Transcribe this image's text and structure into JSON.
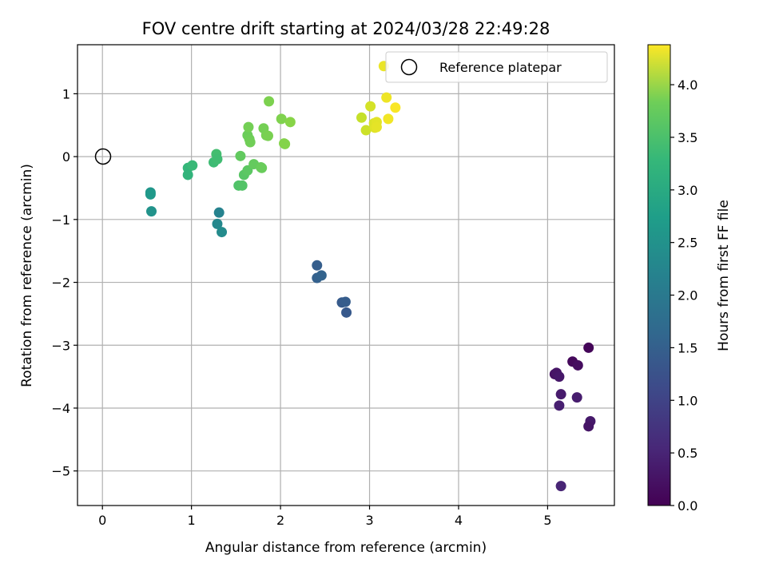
{
  "chart_data": {
    "type": "scatter",
    "title": "FOV centre drift starting at 2024/03/28 22:49:28",
    "xlabel": "Angular distance from reference (arcmin)",
    "ylabel": "Rotation from reference (arcmin)",
    "xlim": [
      -0.28,
      5.75
    ],
    "ylim": [
      -5.55,
      1.78
    ],
    "xticks": [
      0,
      1,
      2,
      3,
      4,
      5
    ],
    "yticks": [
      -5,
      -4,
      -3,
      -2,
      -1,
      0,
      1
    ],
    "grid": true,
    "legend": {
      "placement": "top-right",
      "entries": [
        {
          "label": "Reference platepar",
          "marker": "open-circle"
        }
      ]
    },
    "reference_point": {
      "x": 0,
      "y": 0
    },
    "colorbar": {
      "label": "Hours from first FF file",
      "colormap": "viridis",
      "range": [
        0.0,
        4.38
      ],
      "ticks": [
        0.0,
        0.5,
        1.0,
        1.5,
        2.0,
        2.5,
        3.0,
        3.5,
        4.0
      ],
      "tick_labels": [
        "0.0",
        "0.5",
        "1.0",
        "1.5",
        "2.0",
        "2.5",
        "3.0",
        "3.5",
        "4.0"
      ]
    },
    "points": [
      {
        "x": 5.46,
        "y": -3.04,
        "t": 0.05
      },
      {
        "x": 5.28,
        "y": -3.26,
        "t": 0.1
      },
      {
        "x": 5.34,
        "y": -3.32,
        "t": 0.15
      },
      {
        "x": 5.08,
        "y": -3.46,
        "t": 0.2
      },
      {
        "x": 5.1,
        "y": -3.44,
        "t": 0.25
      },
      {
        "x": 5.13,
        "y": -3.5,
        "t": 0.28
      },
      {
        "x": 5.15,
        "y": -3.78,
        "t": 0.33
      },
      {
        "x": 5.33,
        "y": -3.83,
        "t": 0.35
      },
      {
        "x": 5.13,
        "y": -3.96,
        "t": 0.38
      },
      {
        "x": 5.48,
        "y": -4.21,
        "t": 0.3
      },
      {
        "x": 5.46,
        "y": -4.29,
        "t": 0.25
      },
      {
        "x": 5.15,
        "y": -5.24,
        "t": 0.45
      },
      {
        "x": 2.41,
        "y": -1.73,
        "t": 1.3
      },
      {
        "x": 2.41,
        "y": -1.93,
        "t": 1.35
      },
      {
        "x": 2.46,
        "y": -1.89,
        "t": 1.38
      },
      {
        "x": 2.69,
        "y": -2.32,
        "t": 1.25
      },
      {
        "x": 2.73,
        "y": -2.31,
        "t": 1.28
      },
      {
        "x": 2.74,
        "y": -2.48,
        "t": 1.22
      },
      {
        "x": 1.31,
        "y": -0.89,
        "t": 1.95
      },
      {
        "x": 1.29,
        "y": -1.07,
        "t": 2.05
      },
      {
        "x": 1.34,
        "y": -1.2,
        "t": 2.1
      },
      {
        "x": 0.54,
        "y": -0.57,
        "t": 2.3
      },
      {
        "x": 0.54,
        "y": -0.6,
        "t": 2.35
      },
      {
        "x": 0.55,
        "y": -0.87,
        "t": 2.25
      },
      {
        "x": 0.96,
        "y": -0.18,
        "t": 2.9
      },
      {
        "x": 1.01,
        "y": -0.14,
        "t": 2.95
      },
      {
        "x": 0.96,
        "y": -0.29,
        "t": 2.85
      },
      {
        "x": 1.25,
        "y": -0.09,
        "t": 3.0
      },
      {
        "x": 1.28,
        "y": 0.04,
        "t": 3.05
      },
      {
        "x": 1.29,
        "y": -0.04,
        "t": 3.02
      },
      {
        "x": 1.53,
        "y": -0.46,
        "t": 3.15
      },
      {
        "x": 1.57,
        "y": -0.46,
        "t": 3.18
      },
      {
        "x": 1.59,
        "y": -0.29,
        "t": 3.22
      },
      {
        "x": 1.63,
        "y": -0.22,
        "t": 3.25
      },
      {
        "x": 1.55,
        "y": 0.01,
        "t": 3.3
      },
      {
        "x": 1.7,
        "y": -0.12,
        "t": 3.32
      },
      {
        "x": 1.78,
        "y": -0.17,
        "t": 3.35
      },
      {
        "x": 1.79,
        "y": -0.18,
        "t": 3.36
      },
      {
        "x": 1.63,
        "y": 0.34,
        "t": 3.38
      },
      {
        "x": 1.65,
        "y": 0.28,
        "t": 3.4
      },
      {
        "x": 1.66,
        "y": 0.23,
        "t": 3.42
      },
      {
        "x": 1.64,
        "y": 0.47,
        "t": 3.44
      },
      {
        "x": 1.81,
        "y": 0.45,
        "t": 3.45
      },
      {
        "x": 1.84,
        "y": 0.34,
        "t": 3.46
      },
      {
        "x": 1.86,
        "y": 0.33,
        "t": 3.48
      },
      {
        "x": 1.87,
        "y": 0.88,
        "t": 3.5
      },
      {
        "x": 2.01,
        "y": 0.6,
        "t": 3.52
      },
      {
        "x": 2.04,
        "y": 0.21,
        "t": 3.55
      },
      {
        "x": 2.05,
        "y": 0.2,
        "t": 3.56
      },
      {
        "x": 2.11,
        "y": 0.55,
        "t": 3.58
      },
      {
        "x": 2.91,
        "y": 0.62,
        "t": 4.0
      },
      {
        "x": 2.96,
        "y": 0.42,
        "t": 4.05
      },
      {
        "x": 3.01,
        "y": 0.8,
        "t": 4.1
      },
      {
        "x": 3.05,
        "y": 0.53,
        "t": 4.15
      },
      {
        "x": 3.06,
        "y": 0.46,
        "t": 4.18
      },
      {
        "x": 3.08,
        "y": 0.55,
        "t": 4.2
      },
      {
        "x": 3.08,
        "y": 0.47,
        "t": 4.22
      },
      {
        "x": 3.16,
        "y": 1.44,
        "t": 4.25
      },
      {
        "x": 3.19,
        "y": 0.94,
        "t": 4.28
      },
      {
        "x": 3.21,
        "y": 0.6,
        "t": 4.3
      },
      {
        "x": 3.29,
        "y": 0.78,
        "t": 4.35
      }
    ]
  }
}
